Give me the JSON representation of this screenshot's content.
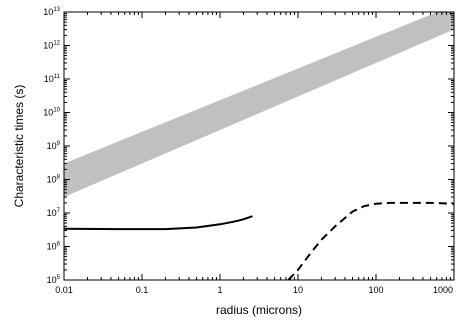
{
  "chart_data": {
    "type": "line",
    "title": "",
    "xlabel": "radius (microns)",
    "ylabel": "Characteristic times (s)",
    "x_scale": "log",
    "y_scale": "log",
    "xlim": [
      0.01,
      1000
    ],
    "ylim": [
      100000,
      10000000000000
    ],
    "grid": false,
    "legend": "none",
    "x_ticks": [
      {
        "value": 0.01,
        "label": "0.01"
      },
      {
        "value": 0.1,
        "label": "0.1"
      },
      {
        "value": 1,
        "label": "1"
      },
      {
        "value": 10,
        "label": "10"
      },
      {
        "value": 100,
        "label": "100"
      },
      {
        "value": 1000,
        "label": "1000"
      }
    ],
    "y_ticks": [
      {
        "value": 100000,
        "base": "10",
        "exp": "5"
      },
      {
        "value": 1000000,
        "base": "10",
        "exp": "6"
      },
      {
        "value": 10000000,
        "base": "10",
        "exp": "7"
      },
      {
        "value": 100000000,
        "base": "10",
        "exp": "8"
      },
      {
        "value": 1000000000,
        "base": "10",
        "exp": "9"
      },
      {
        "value": 10000000000,
        "base": "10",
        "exp": "10"
      },
      {
        "value": 100000000000,
        "base": "10",
        "exp": "11"
      },
      {
        "value": 1000000000000,
        "base": "10",
        "exp": "12"
      },
      {
        "value": 10000000000000,
        "base": "10",
        "exp": "13"
      }
    ],
    "band": {
      "color": "#c0c0c0",
      "x": [
        0.01,
        1000
      ],
      "y_lower": [
        30000000,
        3000000000000
      ],
      "y_upper": [
        300000000,
        16000000000000
      ]
    },
    "series": [
      {
        "style": "solid",
        "color": "#000000",
        "x": [
          0.01,
          0.05,
          0.1,
          0.2,
          0.5,
          1,
          1.5,
          2,
          2.6
        ],
        "y": [
          3400000,
          3300000,
          3300000,
          3300000,
          3700000,
          4600000,
          5500000,
          6500000,
          8000000
        ]
      },
      {
        "style": "dashed",
        "color": "#000000",
        "x": [
          7.5,
          10,
          15,
          20,
          30,
          50,
          70,
          100,
          150,
          300,
          500,
          1000
        ],
        "y": [
          100000,
          200000,
          700000,
          1600000,
          4000000,
          11000000,
          16000000,
          19000000,
          20000000,
          20000000,
          20000000,
          19000000
        ]
      }
    ]
  }
}
